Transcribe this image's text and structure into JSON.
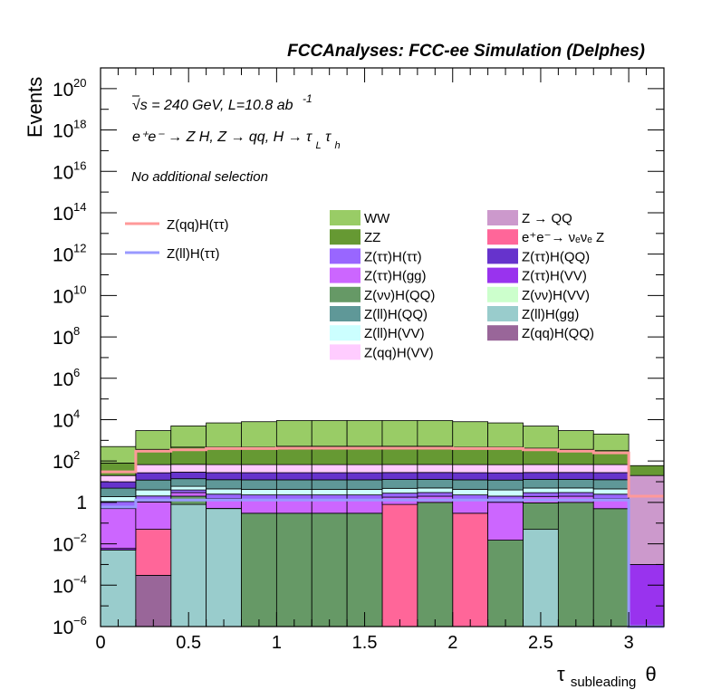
{
  "header": {
    "title": "FCCAnalyses: FCC-ee Simulation (Delphes)"
  },
  "annotations": {
    "energy": "√s = 240 GeV, L=10.8 ab",
    "energy_exp": "-1",
    "process": "e⁺e⁻ → Z H, Z → qq, H → τ",
    "process_sub1": "L",
    "process_tau": "τ",
    "process_sub2": "h",
    "selection": "No additional selection"
  },
  "axes": {
    "ylabel": "Events",
    "xlabel_main": "τ",
    "xlabel_sub": "subleading",
    "xlabel_tail": "θ"
  },
  "chart_data": {
    "type": "bar",
    "stacked": true,
    "y_scale": "log",
    "xlim": [
      0,
      3.2
    ],
    "ylim": [
      1e-06,
      1e+21
    ],
    "x_ticks": [
      0,
      0.5,
      1,
      1.5,
      2,
      2.5,
      3
    ],
    "x_tick_labels": [
      "0",
      "0.5",
      "1",
      "1.5",
      "2",
      "2.5",
      "3"
    ],
    "y_ticks": [
      1e-06,
      0.0001,
      0.01,
      1,
      100.0,
      10000.0,
      1000000.0,
      100000000.0,
      10000000000.0,
      1000000000000.0,
      100000000000000.0,
      1e+16,
      1e+18,
      1e+20
    ],
    "y_tick_labels": [
      {
        "base": "10",
        "exp": "−6"
      },
      {
        "base": "10",
        "exp": "−4"
      },
      {
        "base": "10",
        "exp": "−2"
      },
      {
        "base": "1",
        "exp": ""
      },
      {
        "base": "10",
        "exp": "2"
      },
      {
        "base": "10",
        "exp": "4"
      },
      {
        "base": "10",
        "exp": "6"
      },
      {
        "base": "10",
        "exp": "8"
      },
      {
        "base": "10",
        "exp": "10"
      },
      {
        "base": "10",
        "exp": "12"
      },
      {
        "base": "10",
        "exp": "14"
      },
      {
        "base": "10",
        "exp": "16"
      },
      {
        "base": "10",
        "exp": "18"
      },
      {
        "base": "10",
        "exp": "20"
      }
    ],
    "bin_edges": [
      0,
      0.2,
      0.4,
      0.6,
      0.8,
      1.0,
      1.2,
      1.4,
      1.6,
      1.8,
      2.0,
      2.2,
      2.4,
      2.6,
      2.8,
      3.0,
      3.2
    ],
    "totals": [
      500,
      3000,
      5000,
      7000,
      8000,
      9000,
      9000,
      9000,
      9000,
      9000,
      8000,
      7000,
      5000,
      3000,
      2000,
      60
    ],
    "layers": [
      {
        "name": "Z(ll)H(gg)",
        "color": "#99cccc",
        "values": [
          0.005,
          1e-06,
          0.8,
          0.5,
          1e-06,
          1e-06,
          1e-06,
          1e-06,
          1e-06,
          1e-06,
          1e-06,
          1e-06,
          0.05,
          1e-06,
          1e-06,
          1e-06
        ]
      },
      {
        "name": "Z(qq)H(QQ)",
        "color": "#996699",
        "values": [
          1e-06,
          0.0003,
          1e-06,
          1e-06,
          1e-06,
          1e-06,
          1e-06,
          1e-06,
          1e-06,
          1e-06,
          1e-06,
          1e-06,
          1e-06,
          1e-06,
          1e-06,
          1e-06
        ]
      },
      {
        "name": "e⁺e⁻→ νₑνₑ Z",
        "color": "#ff6699",
        "values": [
          1e-06,
          0.05,
          1e-06,
          1e-06,
          1e-06,
          1e-06,
          1e-06,
          1e-06,
          0.8,
          1e-06,
          0.3,
          1e-06,
          1e-06,
          1e-06,
          1e-06,
          1e-06
        ]
      },
      {
        "name": "Z(νν)H(QQ)",
        "color": "#669966",
        "values": [
          1e-06,
          1e-06,
          1.2,
          0.015,
          0.3,
          0.3,
          0.3,
          0.3,
          1e-06,
          1.0,
          1e-06,
          0.015,
          0.9,
          1.0,
          0.5,
          1e-06
        ]
      },
      {
        "name": "Z(ττ)H(VV)",
        "color": "#9933ee",
        "values": [
          0.001,
          1e-06,
          1e-06,
          1e-06,
          1e-06,
          1e-06,
          1e-06,
          1e-06,
          1e-06,
          1e-06,
          1e-06,
          1e-06,
          1e-06,
          1e-06,
          1e-06,
          0.001
        ]
      },
      {
        "name": "Z(ττ)H(gg)",
        "color": "#cc66ff",
        "values": [
          0.5,
          1,
          1,
          1,
          1,
          1,
          1,
          1,
          1,
          1,
          1,
          1,
          1,
          1,
          1,
          1e-06
        ]
      },
      {
        "name": "Z(ττ)H(ττ)",
        "color": "#9966ff",
        "values": [
          0.6,
          1,
          1,
          1,
          1,
          1,
          1,
          1,
          1,
          1,
          1,
          1,
          1,
          1,
          1,
          1e-06
        ]
      },
      {
        "name": "Z(ll)H(VV)",
        "color": "#ccffff",
        "values": [
          0.8,
          2,
          2,
          2,
          2,
          2,
          2,
          2,
          2,
          2,
          2,
          2,
          2,
          2,
          2,
          1e-06
        ]
      },
      {
        "name": "Z → QQ",
        "color": "#cc99cc",
        "values": [
          1e-06,
          1e-06,
          1e-06,
          1e-06,
          1e-06,
          1e-06,
          1e-06,
          1e-06,
          1e-06,
          1e-06,
          1e-06,
          1e-06,
          1e-06,
          1e-06,
          1e-06,
          20
        ]
      },
      {
        "name": "Z(ll)H(QQ)",
        "color": "#5f9898",
        "values": [
          3,
          8,
          8,
          8,
          8,
          8,
          8,
          8,
          8,
          8,
          8,
          8,
          8,
          8,
          8,
          1e-06
        ]
      },
      {
        "name": "Z(ττ)H(QQ)",
        "color": "#6633cc",
        "values": [
          5,
          15,
          15,
          15,
          15,
          15,
          15,
          15,
          15,
          15,
          15,
          15,
          15,
          15,
          15,
          1e-06
        ]
      },
      {
        "name": "Z(qq)H(VV)",
        "color": "#ffccff",
        "values": [
          10,
          40,
          40,
          40,
          40,
          40,
          40,
          40,
          40,
          40,
          40,
          40,
          40,
          40,
          40,
          1e-06
        ]
      },
      {
        "name": "ZZ",
        "color": "#669933",
        "values": [
          60,
          300,
          400,
          400,
          400,
          450,
          450,
          450,
          450,
          450,
          400,
          400,
          350,
          300,
          250,
          40
        ]
      },
      {
        "name": "WW",
        "color": "#99cc66",
        "values": [
          420,
          2600,
          4500,
          6500,
          7500,
          8500,
          8500,
          8500,
          8500,
          8500,
          7500,
          6500,
          4500,
          2600,
          1700,
          1e-06
        ]
      }
    ],
    "lines": [
      {
        "name": "Z(qq)H(ττ)",
        "color": "#ff9999",
        "values": [
          30,
          300,
          350,
          400,
          400,
          420,
          420,
          420,
          420,
          420,
          400,
          400,
          350,
          300,
          250,
          2
        ]
      },
      {
        "name": "Z(ll)H(ττ)",
        "color": "#9999ff",
        "values": [
          0.6,
          1.3,
          1.3,
          1.3,
          1.3,
          1.3,
          1.3,
          1.3,
          1.3,
          1.3,
          1.3,
          1.3,
          1.3,
          1.3,
          1.3,
          1e-06
        ]
      }
    ],
    "legend_lines": [
      "Z(qq)H(ττ)",
      "Z(ll)H(ττ)"
    ],
    "legend_fills": [
      {
        "name": "WW",
        "color": "#99cc66"
      },
      {
        "name": "Z → QQ",
        "color": "#cc99cc"
      },
      {
        "name": "ZZ",
        "color": "#669933"
      },
      {
        "name": "e⁺e⁻→ νₑνₑ Z",
        "color": "#ff6699"
      },
      {
        "name": "Z(ττ)H(ττ)",
        "color": "#9966ff"
      },
      {
        "name": "Z(ττ)H(QQ)",
        "color": "#6633cc"
      },
      {
        "name": "Z(ττ)H(gg)",
        "color": "#cc66ff"
      },
      {
        "name": "Z(ττ)H(VV)",
        "color": "#9933ee"
      },
      {
        "name": "Z(νν)H(QQ)",
        "color": "#669966"
      },
      {
        "name": "Z(νν)H(VV)",
        "color": "#ccffcc"
      },
      {
        "name": "Z(ll)H(QQ)",
        "color": "#5f9898"
      },
      {
        "name": "Z(ll)H(gg)",
        "color": "#99cccc"
      },
      {
        "name": "Z(ll)H(VV)",
        "color": "#ccffff"
      },
      {
        "name": "Z(qq)H(QQ)",
        "color": "#996699"
      },
      {
        "name": "Z(qq)H(VV)",
        "color": "#ffccff"
      }
    ]
  }
}
